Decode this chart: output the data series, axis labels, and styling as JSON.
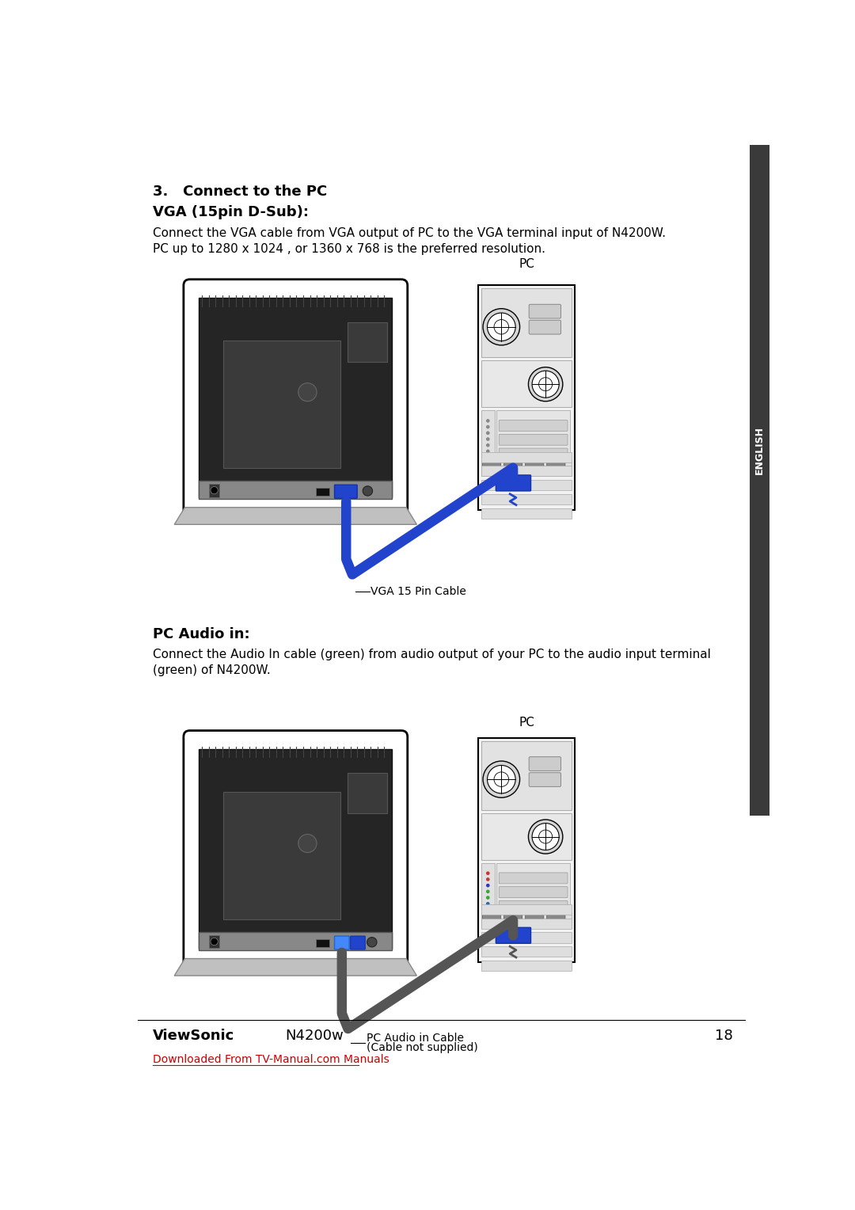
{
  "bg_color": "#ffffff",
  "title_section": "3.   Connect to the PC",
  "subtitle_vga": "VGA (15pin D-Sub):",
  "text_vga1": "Connect the VGA cable from VGA output of PC to the VGA terminal input of N4200W.",
  "text_vga2": "PC up to 1280 x 1024 , or 1360 x 768 is the preferred resolution.",
  "subtitle_audio": "PC Audio in:",
  "text_audio_line1": "Connect the Audio In cable (green) from audio output of your PC to the audio input terminal",
  "text_audio_line2": "(green) of N4200W.",
  "label_vga_cable": "VGA 15 Pin Cable",
  "label_audio_line1": "PC Audio in Cable",
  "label_audio_line2": "(Cable not supplied)",
  "label_pc1": "PC",
  "label_pc2": "PC",
  "footer_brand": "ViewSonic",
  "footer_model": "N4200w",
  "footer_page": "18",
  "footer_link": "Downloaded From TV-Manual.com Manuals",
  "sidebar_text": "ENGLISH",
  "sidebar_color": "#3a3a3a",
  "sidebar_text_color": "#ffffff",
  "link_color": "#cc0000",
  "vga_cable_color": "#2244cc",
  "audio_cable_color": "#555555"
}
